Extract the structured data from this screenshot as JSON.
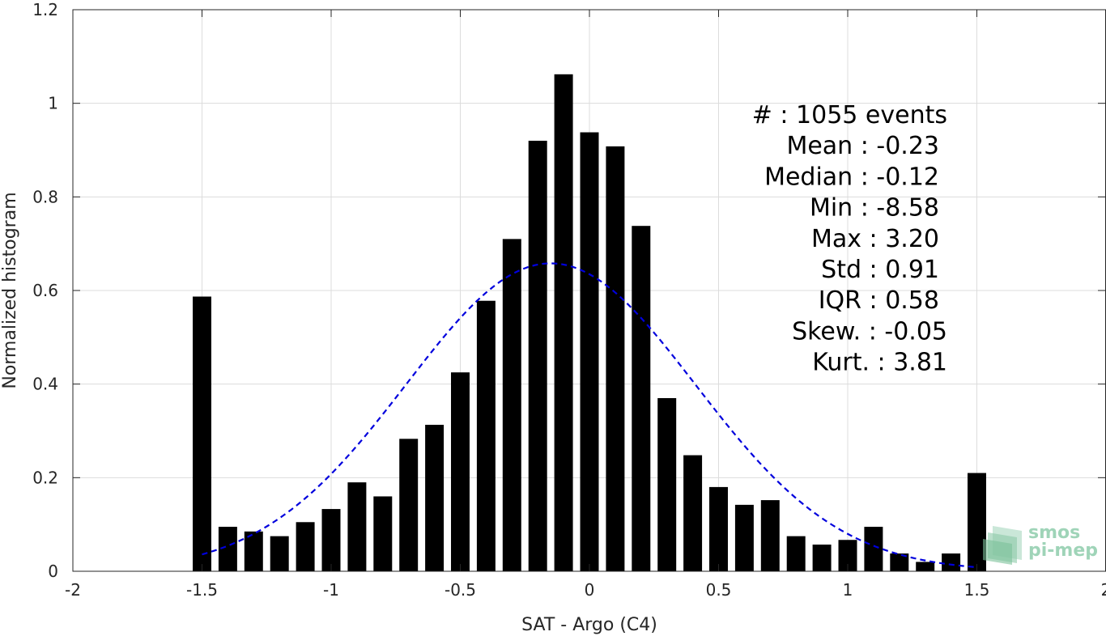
{
  "chart_data": {
    "type": "bar",
    "xlabel": "SAT - Argo (C4)",
    "ylabel": "Normalized histogram",
    "xlim": [
      -2,
      2
    ],
    "ylim": [
      0,
      1.2
    ],
    "grid": true,
    "xticks": [
      "-2",
      "-1.5",
      "-1",
      "-0.5",
      "0",
      "0.5",
      "1",
      "1.5",
      "2"
    ],
    "yticks": [
      "0",
      "0.2",
      "0.4",
      "0.6",
      "0.8",
      "1",
      "1.2"
    ],
    "bar_color": "#000000",
    "fit_color": "#0000dd",
    "bins": [
      -1.5,
      -1.4,
      -1.3,
      -1.2,
      -1.1,
      -1.0,
      -0.9,
      -0.8,
      -0.7,
      -0.6,
      -0.5,
      -0.4,
      -0.3,
      -0.2,
      -0.1,
      0.0,
      0.1,
      0.2,
      0.3,
      0.4,
      0.5,
      0.6,
      0.7,
      0.8,
      0.9,
      1.0,
      1.1,
      1.2,
      1.3,
      1.4,
      1.5
    ],
    "values": [
      0.587,
      0.095,
      0.085,
      0.075,
      0.105,
      0.133,
      0.19,
      0.16,
      0.283,
      0.313,
      0.425,
      0.578,
      0.71,
      0.92,
      1.062,
      0.938,
      0.908,
      0.738,
      0.37,
      0.248,
      0.18,
      0.142,
      0.152,
      0.075,
      0.057,
      0.067,
      0.095,
      0.038,
      0.02,
      0.038,
      0.21
    ],
    "fit": {
      "name": "gaussian",
      "style": "dashed",
      "x_range": [
        -1.5,
        1.5
      ],
      "peak": 0.658,
      "center": -0.15,
      "sigma": 0.56
    },
    "stats": [
      {
        "label": "#  : 1055 events"
      },
      {
        "label": "Mean : -0.23"
      },
      {
        "label": "Median : -0.12"
      },
      {
        "label": "Min : -8.58"
      },
      {
        "label": "Max : 3.20"
      },
      {
        "label": "Std : 0.91"
      },
      {
        "label": "IQR : 0.58"
      },
      {
        "label": "Skew. : -0.05"
      },
      {
        "label": "Kurt. : 3.81"
      }
    ]
  },
  "logo": {
    "line1": "smos",
    "line2": "pi-mep",
    "color": "#9fd4b8"
  }
}
